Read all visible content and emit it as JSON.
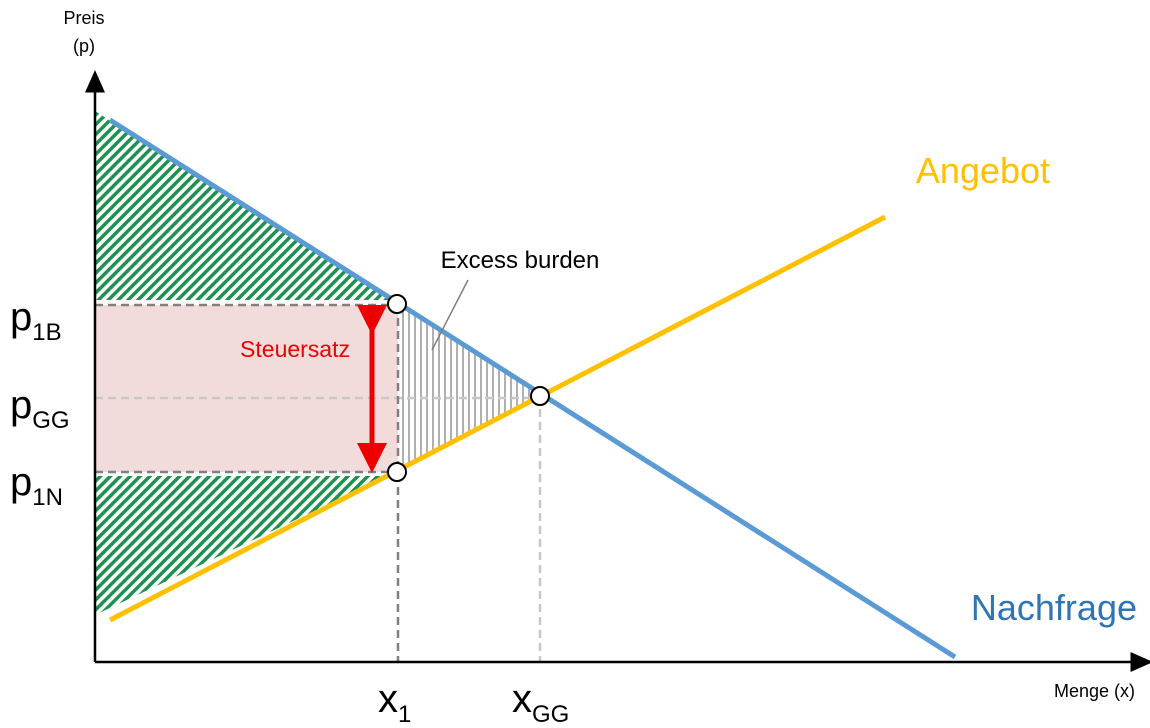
{
  "y_axis": {
    "label_line1": "Preis",
    "label_line2": "(p)"
  },
  "x_axis": {
    "label": "Menge (x)"
  },
  "curves": {
    "supply": "Angebot",
    "demand": "Nachfrage"
  },
  "annotations": {
    "excess_burden": "Excess burden",
    "tax_rate": "Steuersatz"
  },
  "price_labels": [
    {
      "main": "p",
      "sub": "1B"
    },
    {
      "main": "p",
      "sub": "GG"
    },
    {
      "main": "p",
      "sub": "1N"
    }
  ],
  "quantity_labels": [
    {
      "main": "x",
      "sub": "1"
    },
    {
      "main": "x",
      "sub": "GG"
    }
  ]
}
